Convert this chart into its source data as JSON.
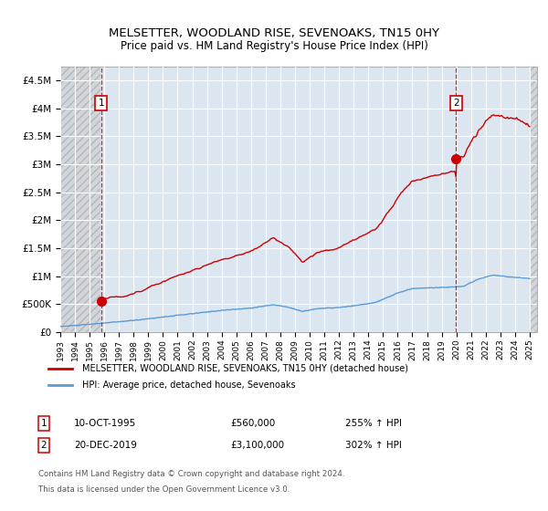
{
  "title": "MELSETTER, WOODLAND RISE, SEVENOAKS, TN15 0HY",
  "subtitle": "Price paid vs. HM Land Registry's House Price Index (HPI)",
  "legend_line1": "MELSETTER, WOODLAND RISE, SEVENOAKS, TN15 0HY (detached house)",
  "legend_line2": "HPI: Average price, detached house, Sevenoaks",
  "footnote1": "Contains HM Land Registry data © Crown copyright and database right 2024.",
  "footnote2": "This data is licensed under the Open Government Licence v3.0.",
  "annotation1": [
    "1",
    "10-OCT-1995",
    "£560,000",
    "255% ↑ HPI"
  ],
  "annotation2": [
    "2",
    "20-DEC-2019",
    "£3,100,000",
    "302% ↑ HPI"
  ],
  "xlim": [
    1993.0,
    2025.5
  ],
  "ylim": [
    0,
    4750000
  ],
  "yticks": [
    0,
    500000,
    1000000,
    1500000,
    2000000,
    2500000,
    3000000,
    3500000,
    4000000,
    4500000
  ],
  "ytick_labels": [
    "£0",
    "£500K",
    "£1M",
    "£1.5M",
    "£2M",
    "£2.5M",
    "£3M",
    "£3.5M",
    "£4M",
    "£4.5M"
  ],
  "xticks": [
    1993,
    1994,
    1995,
    1996,
    1997,
    1998,
    1999,
    2000,
    2001,
    2002,
    2003,
    2004,
    2005,
    2006,
    2007,
    2008,
    2009,
    2010,
    2011,
    2012,
    2013,
    2014,
    2015,
    2016,
    2017,
    2018,
    2019,
    2020,
    2021,
    2022,
    2023,
    2024,
    2025
  ],
  "hatch_end_year": 1995.75,
  "point1_x": 1995.78,
  "point1_y": 560000,
  "point2_x": 2019.97,
  "point2_y": 3100000,
  "red_color": "#cc0000",
  "blue_color": "#5b9bd5",
  "background_color": "#ffffff",
  "plot_bg_color": "#dce6f1",
  "grid_color": "#ffffff",
  "marker_size": 7
}
